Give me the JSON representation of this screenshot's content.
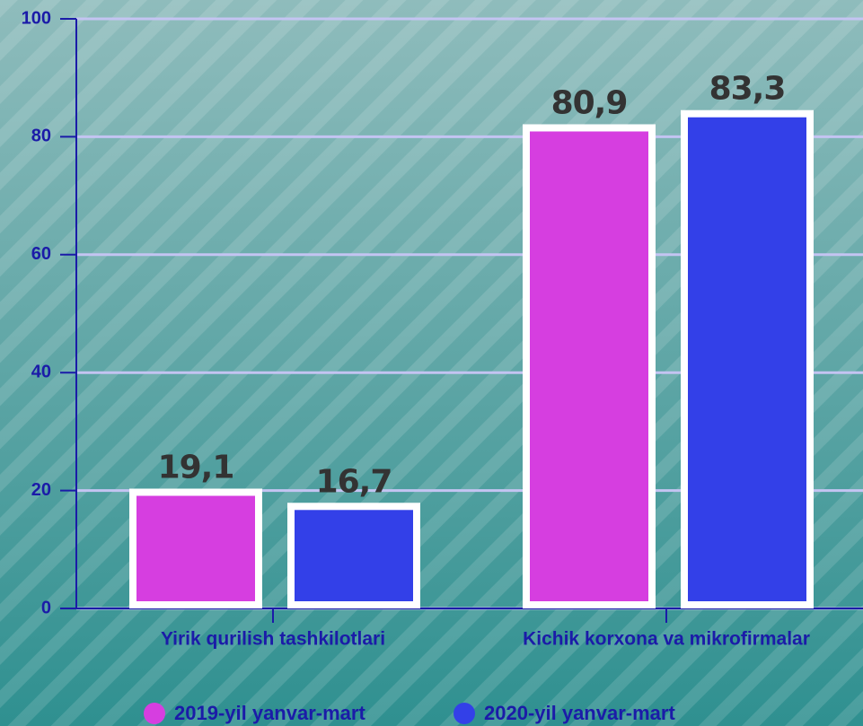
{
  "chart_data": {
    "type": "bar",
    "categories": [
      "Yirik qurilish tashkilotlari",
      "Kichik korxona va mikrofirmalar"
    ],
    "series": [
      {
        "name": "2019-yil yanvar-mart",
        "color": "#d63ee0",
        "values": [
          19.1,
          80.9
        ],
        "value_labels": [
          "19,1",
          "80,9"
        ]
      },
      {
        "name": "2020-yil yanvar-mart",
        "color": "#3340e8",
        "values": [
          16.7,
          83.3
        ],
        "value_labels": [
          "16,7",
          "83,3"
        ]
      }
    ],
    "ylim": [
      0,
      100
    ],
    "yticks": [
      0,
      20,
      40,
      60,
      80,
      100
    ],
    "grid": true,
    "legend": "bottom"
  }
}
